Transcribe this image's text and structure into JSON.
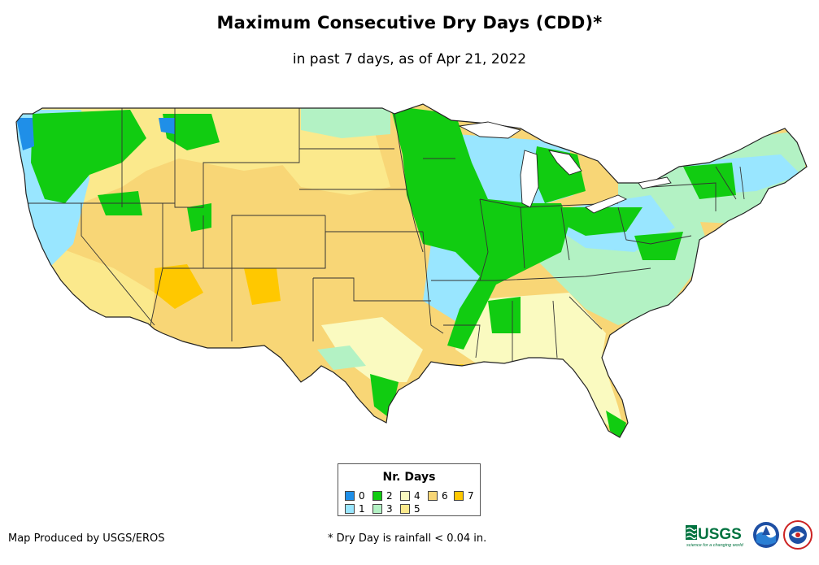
{
  "title": "Maximum Consecutive Dry Days (CDD)*",
  "subtitle": "in past 7 days, as of Apr 21, 2022",
  "legend": {
    "title": "Nr. Days",
    "items": [
      {
        "label": "0",
        "color": "#1f8fe8"
      },
      {
        "label": "1",
        "color": "#99e6ff"
      },
      {
        "label": "2",
        "color": "#11cc11"
      },
      {
        "label": "3",
        "color": "#b3f2c4"
      },
      {
        "label": "4",
        "color": "#fafac0"
      },
      {
        "label": "5",
        "color": "#fbe98c"
      },
      {
        "label": "6",
        "color": "#f8d676"
      },
      {
        "label": "7",
        "color": "#ffc800"
      }
    ]
  },
  "credit": "Map Produced by USGS/EROS",
  "footnote": "* Dry Day is rainfall < 0.04 in.",
  "logos": {
    "usgs_text": "USGS",
    "usgs_tagline": "science for a changing world",
    "noaa_text": "NOAA",
    "nws_icon": "nws-logo-icon"
  }
}
